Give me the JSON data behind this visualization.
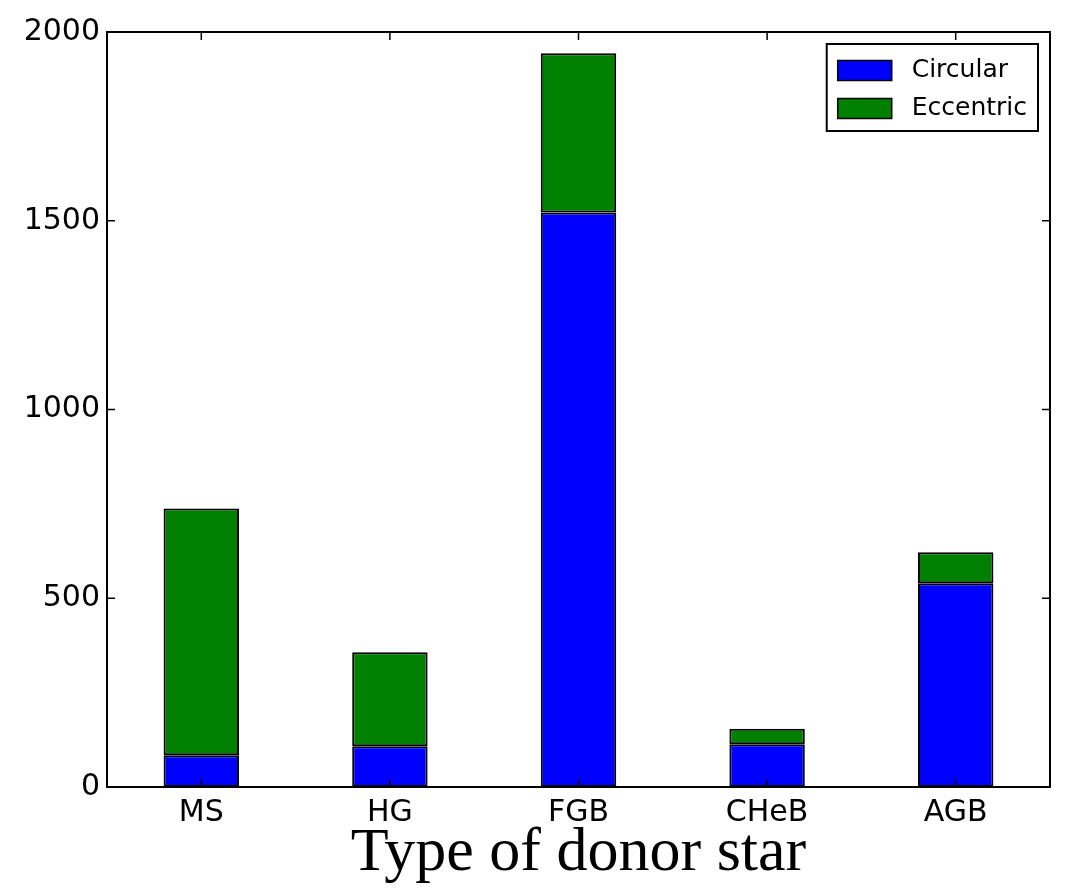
{
  "chart_data": {
    "type": "bar",
    "xlabel": "Type of donor star",
    "categories": [
      "MS",
      "HG",
      "FGB",
      "CHeB",
      "AGB"
    ],
    "series": [
      {
        "name": "Circular",
        "color": "#0000ff",
        "values": [
          84,
          108,
          1522,
          113,
          540
        ]
      },
      {
        "name": "Eccentric",
        "color": "#008000",
        "values": [
          654,
          249,
          422,
          41,
          82
        ]
      }
    ],
    "stacked": true,
    "ylim": [
      0,
      2000
    ],
    "yticks": [
      0,
      500,
      1000,
      1500,
      2000
    ],
    "grid": false,
    "legend": "top right"
  }
}
